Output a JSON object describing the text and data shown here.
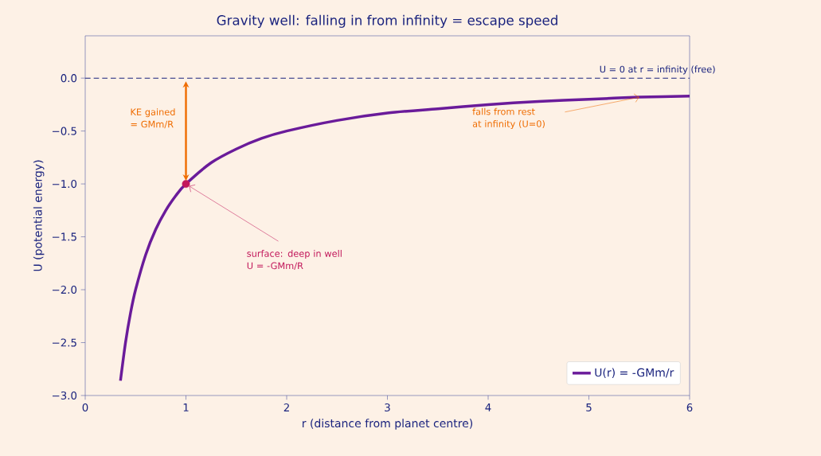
{
  "chart_data": {
    "type": "line",
    "title": "Gravity well: falling in from infinity = escape speed",
    "xlabel": "r  (distance from planet centre)",
    "ylabel": "U  (potential energy)",
    "xlim": [
      0,
      6
    ],
    "xticks": [
      0,
      1,
      2,
      3,
      4,
      5,
      6
    ],
    "ylim": [
      -3.0,
      0.4
    ],
    "yticks": [
      {
        "value": -3.0,
        "label": "−3.0"
      },
      {
        "value": -2.5,
        "label": "−2.5"
      },
      {
        "value": -2.0,
        "label": "−2.0"
      },
      {
        "value": -1.5,
        "label": "−1.5"
      },
      {
        "value": -1.0,
        "label": "−1.0"
      },
      {
        "value": -0.5,
        "label": "−0.5"
      },
      {
        "value": 0.0,
        "label": "0.0"
      }
    ],
    "series": [
      {
        "name": "U(r) = -GMm/r",
        "color": "#6a1b9a",
        "marker": "none",
        "x": [
          0.35,
          0.4,
          0.45,
          0.5,
          0.6,
          0.7,
          0.8,
          0.9,
          1.0,
          1.25,
          1.5,
          1.75,
          2.0,
          2.5,
          3.0,
          3.5,
          4.0,
          4.5,
          5.0,
          5.5,
          6.0
        ],
        "values": [
          -2.86,
          -2.5,
          -2.22,
          -2.0,
          -1.67,
          -1.43,
          -1.25,
          -1.11,
          -1.0,
          -0.8,
          -0.67,
          -0.57,
          -0.5,
          -0.4,
          -0.33,
          -0.29,
          -0.25,
          -0.22,
          -0.2,
          -0.18,
          -0.17
        ]
      },
      {
        "type": "scatter",
        "color": "#c2185b",
        "marker": "circle",
        "x": [
          1.0
        ],
        "values": [
          -1.0
        ]
      }
    ],
    "ref_lines": [
      {
        "axis": "y",
        "value": 0.0,
        "label": "U = 0 at r = infinity (free)",
        "color": "#1a237e",
        "line_style": "dashed"
      }
    ],
    "annotations": [
      "KE gained\n= GMm/R",
      {
        "text": "surface: deep in well\nU = -GMm/R",
        "x": 1.0,
        "y": -1.0
      },
      "falls from rest\nat infinity (U=0)"
    ],
    "legend": "bottom right"
  }
}
